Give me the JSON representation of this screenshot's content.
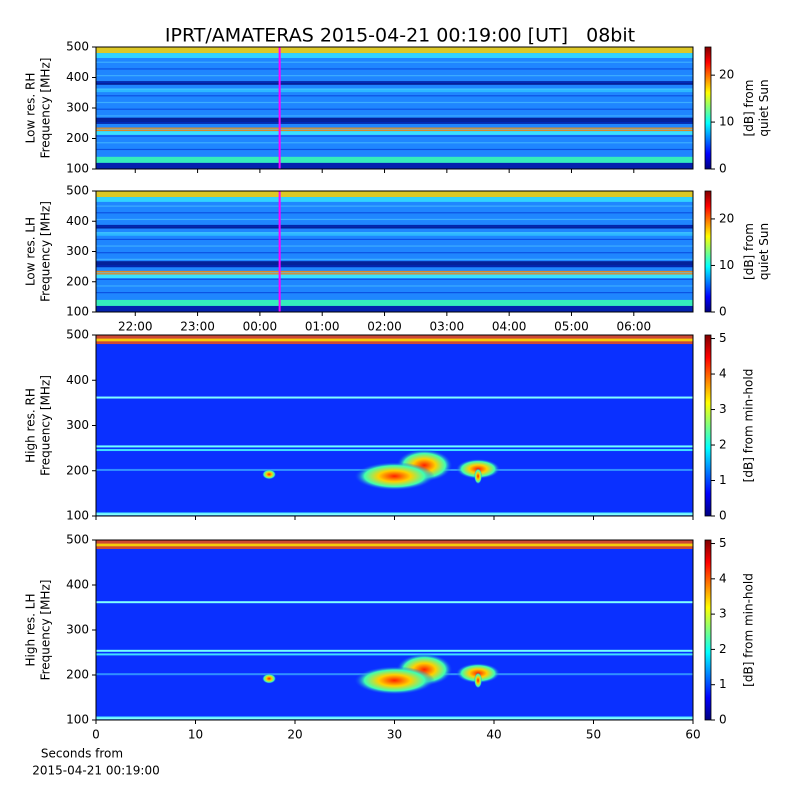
{
  "title": "IPRT/AMATERAS 2015-04-21 00:19:00 [UT]   08bit",
  "chart_data": [
    {
      "type": "heatmap",
      "ylabel": [
        "Low res. RH",
        "Frequency [MHz]"
      ],
      "ylim": [
        100,
        500
      ],
      "yticks": [
        100,
        200,
        300,
        400,
        500
      ],
      "xlim": [
        -2.63,
        6.95
      ],
      "vline": 0.3167,
      "vline_color": "#ff00ff",
      "colorbar": {
        "label": [
          "[dB] from",
          "quiet Sun"
        ],
        "lim": [
          0,
          26
        ],
        "ticks": [
          0,
          10,
          20
        ]
      }
    },
    {
      "type": "heatmap",
      "ylabel": [
        "Low res. LH",
        "Frequency [MHz]"
      ],
      "ylim": [
        100,
        500
      ],
      "yticks": [
        100,
        200,
        300,
        400,
        500
      ],
      "xlim": [
        -2.63,
        6.95
      ],
      "vline": 0.3167,
      "vline_color": "#ff00ff",
      "xticks": [
        {
          "value": -2,
          "label": "22:00"
        },
        {
          "value": -1,
          "label": "23:00"
        },
        {
          "value": 0,
          "label": "00:00"
        },
        {
          "value": 1,
          "label": "01:00"
        },
        {
          "value": 2,
          "label": "02:00"
        },
        {
          "value": 3,
          "label": "03:00"
        },
        {
          "value": 4,
          "label": "04:00"
        },
        {
          "value": 5,
          "label": "05:00"
        },
        {
          "value": 6,
          "label": "06:00"
        }
      ],
      "colorbar": {
        "label": [
          "[dB] from",
          "quiet Sun"
        ],
        "lim": [
          0,
          26
        ],
        "ticks": [
          0,
          10,
          20
        ]
      }
    },
    {
      "type": "heatmap",
      "ylabel": [
        "High res. RH",
        "Frequency [MHz]"
      ],
      "ylim": [
        100,
        500
      ],
      "yticks": [
        100,
        200,
        300,
        400,
        500
      ],
      "xlim": [
        0,
        60
      ],
      "colorbar": {
        "label": [
          "[dB] from min-hold"
        ],
        "lim": [
          0,
          5.1
        ],
        "ticks": [
          0,
          1,
          2,
          3,
          4,
          5
        ]
      }
    },
    {
      "type": "heatmap",
      "ylabel": [
        "High res. LH",
        "Frequency [MHz]"
      ],
      "ylim": [
        100,
        500
      ],
      "yticks": [
        100,
        200,
        300,
        400,
        500
      ],
      "xlim": [
        0,
        60
      ],
      "xticks": [
        0,
        10,
        20,
        30,
        40,
        50,
        60
      ],
      "xlabel": [
        "Seconds from",
        "2015-04-21 00:19:00"
      ],
      "colorbar": {
        "label": [
          "[dB] from min-hold"
        ],
        "lim": [
          0,
          5.1
        ],
        "ticks": [
          0,
          1,
          2,
          3,
          4,
          5
        ]
      }
    }
  ]
}
